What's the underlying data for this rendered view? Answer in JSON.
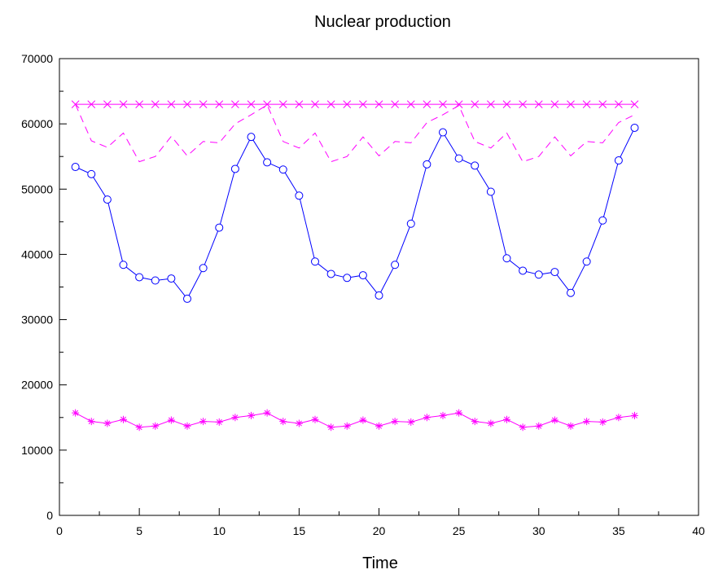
{
  "chart_data": {
    "type": "line",
    "title": "Nuclear production",
    "xlabel": "Time",
    "ylabel": "",
    "xlim": [
      0,
      40
    ],
    "ylim": [
      0,
      70000
    ],
    "x_ticks": [
      0,
      5,
      10,
      15,
      20,
      25,
      30,
      35,
      40
    ],
    "y_ticks": [
      0,
      10000,
      20000,
      30000,
      40000,
      50000,
      60000,
      70000
    ],
    "x_tick_labels": [
      "0",
      "5",
      "10",
      "15",
      "20",
      "25",
      "30",
      "35",
      "40"
    ],
    "y_tick_labels": [
      "0",
      "10000",
      "20000",
      "30000",
      "40000",
      "50000",
      "60000",
      "70000"
    ],
    "grid": false,
    "x": [
      1,
      2,
      3,
      4,
      5,
      6,
      7,
      8,
      9,
      10,
      11,
      12,
      13,
      14,
      15,
      16,
      17,
      18,
      19,
      20,
      21,
      22,
      23,
      24,
      25,
      26,
      27,
      28,
      29,
      30,
      31,
      32,
      33,
      34,
      35,
      36
    ],
    "series": [
      {
        "color": "#0000ff",
        "line_style": "solid",
        "marker": "circle",
        "values": [
          53400,
          52300,
          48400,
          38400,
          36500,
          36000,
          36300,
          33200,
          37900,
          44100,
          53100,
          58000,
          54100,
          53000,
          49000,
          38900,
          37000,
          36400,
          36800,
          33700,
          38400,
          44700,
          53800,
          58700,
          54700,
          53600,
          49600,
          39400,
          37500,
          36900,
          37300,
          34100,
          38900,
          45200,
          54400,
          59400
        ]
      },
      {
        "color": "#ff00ff",
        "line_style": "dashed",
        "marker": "none",
        "values": [
          63000,
          57400,
          56400,
          58600,
          54200,
          55000,
          58100,
          55100,
          57300,
          57100,
          60000,
          61400,
          62900,
          57300,
          56300,
          58600,
          54200,
          55000,
          58000,
          55100,
          57300,
          57100,
          60200,
          61400,
          62800,
          57300,
          56300,
          58600,
          54200,
          55000,
          58000,
          55100,
          57300,
          57100,
          60200,
          61400
        ]
      },
      {
        "color": "#ff00ff",
        "line_style": "solid",
        "marker": "x",
        "values": [
          63000,
          63000,
          63000,
          63000,
          63000,
          63000,
          63000,
          63000,
          63000,
          63000,
          63000,
          63000,
          63000,
          63000,
          63000,
          63000,
          63000,
          63000,
          63000,
          63000,
          63000,
          63000,
          63000,
          63000,
          63000,
          63000,
          63000,
          63000,
          63000,
          63000,
          63000,
          63000,
          63000,
          63000,
          63000,
          63000
        ]
      },
      {
        "color": "#ff00ff",
        "line_style": "solid",
        "marker": "asterisk",
        "values": [
          15700,
          14400,
          14100,
          14700,
          13500,
          13700,
          14600,
          13700,
          14400,
          14300,
          15000,
          15300,
          15700,
          14400,
          14100,
          14700,
          13500,
          13700,
          14600,
          13700,
          14400,
          14300,
          15000,
          15300,
          15700,
          14400,
          14100,
          14700,
          13500,
          13700,
          14600,
          13700,
          14400,
          14300,
          15000,
          15300
        ]
      }
    ]
  }
}
